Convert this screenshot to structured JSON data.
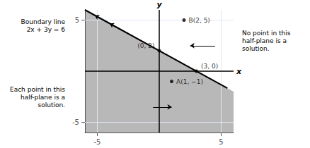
{
  "chart_data": {
    "type": "scatter",
    "xlim": [
      -6,
      6
    ],
    "ylim": [
      -6,
      6
    ],
    "xticks": [
      -5,
      5
    ],
    "yticks": [
      -5,
      5
    ],
    "grid": true,
    "color": "#000000",
    "x_label": "x",
    "y_label": "y",
    "shaded_region": {
      "color": "#b8b8b8",
      "vertices": [
        [
          -6,
          6
        ],
        [
          6,
          -2
        ],
        [
          6,
          -6
        ],
        [
          -6,
          -6
        ]
      ]
    },
    "boundary_line": {
      "x": [
        -6,
        5.5
      ],
      "y": [
        6,
        -1.6666666666666667
      ]
    },
    "points": {
      "x": [
        0,
        2,
        3,
        1
      ],
      "y": [
        2,
        5,
        0,
        -1
      ],
      "labels": [
        "(0, 2)",
        "B(2, 5)",
        "(3, 0)",
        "A(1, −1)"
      ]
    },
    "arrows": [
      {
        "from": [
          -2.5,
          3.6666666666666665
        ],
        "to": [
          -4.0,
          4.666666666666667
        ]
      },
      {
        "from": [
          -4.0,
          4.666666666666667
        ],
        "to": [
          -5.2,
          5.466666666666666
        ]
      },
      {
        "from": [
          -0.5,
          -3.5
        ],
        "to": [
          1.0,
          -3.5
        ]
      },
      {
        "from": [
          4.5,
          2.5
        ],
        "to": [
          2.5,
          2.5
        ]
      }
    ],
    "annotations": [
      "Boundary line\n2x + 3y = 6",
      "No point in this\nhalf-plane is a\nsolution.",
      "Each point in this\nhalf-plane is a\nsolution."
    ]
  }
}
